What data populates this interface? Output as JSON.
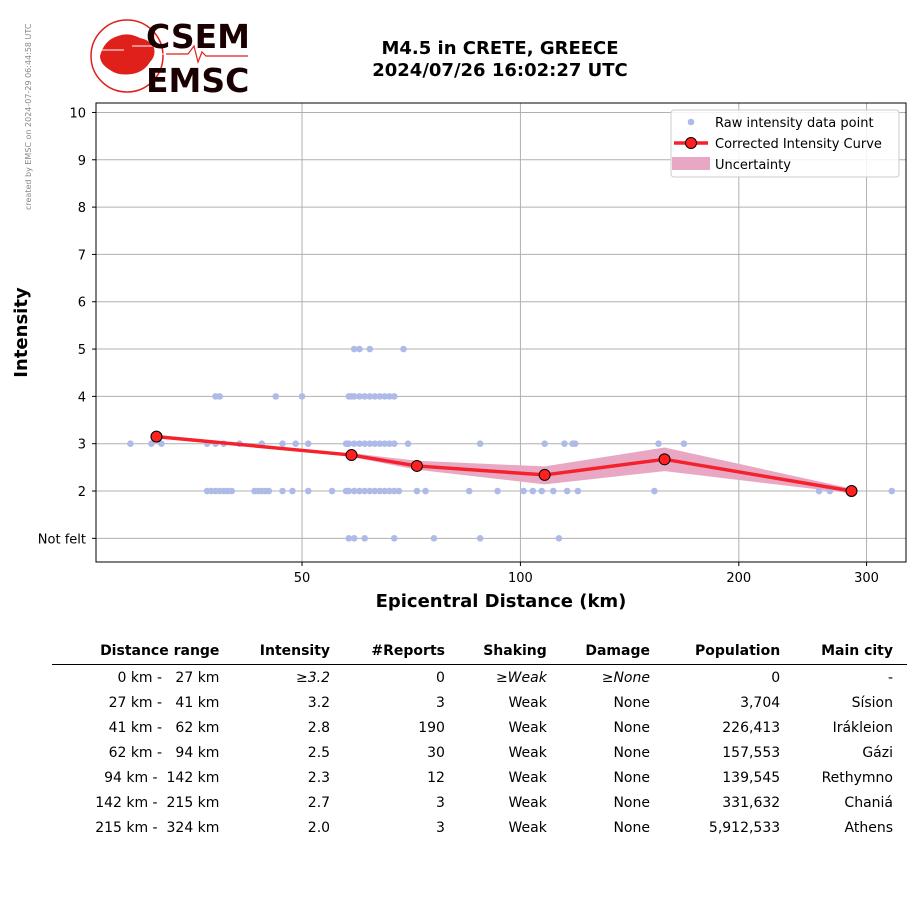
{
  "side_note": "created by EMSC on 2024-07-29 06:44:58 UTC",
  "logo": {
    "line1": "CSEM",
    "line2": "EMSC"
  },
  "title": {
    "line1": "M4.5 in CRETE, GREECE",
    "line2": "2024/07/26 16:02:27 UTC"
  },
  "colors": {
    "raw_points": "#aebbe8",
    "curve": "#f5222d",
    "marker": "#ff2020",
    "uncertainty": "#e8a8c4",
    "grid": "#b0b0b0"
  },
  "chart_data": {
    "type": "scatter",
    "xlabel": "Epicentral Distance (km)",
    "ylabel": "Intensity",
    "x_scale": "log",
    "xlim": [
      26,
      340
    ],
    "ylim": [
      0.5,
      10.2
    ],
    "x_ticks": [
      50,
      100,
      200,
      300
    ],
    "x_tick_labels": [
      "50",
      "100",
      "200",
      "300"
    ],
    "y_ticks": [
      1,
      2,
      3,
      4,
      5,
      6,
      7,
      8,
      9,
      10
    ],
    "y_tick_labels": [
      "Not felt",
      "2",
      "3",
      "4",
      "5",
      "6",
      "7",
      "8",
      "9",
      "10"
    ],
    "grid": true,
    "legend_position": "top-right",
    "legend": [
      "Raw intensity data point",
      "Corrected Intensity Curve",
      "Uncertainty"
    ],
    "series": [
      {
        "name": "Raw intensity data point",
        "points": [
          [
            29,
            3
          ],
          [
            31,
            3
          ],
          [
            32,
            3
          ],
          [
            37,
            3
          ],
          [
            38,
            3
          ],
          [
            39,
            3
          ],
          [
            41,
            3
          ],
          [
            44,
            3
          ],
          [
            47,
            3
          ],
          [
            49,
            3
          ],
          [
            51,
            3
          ],
          [
            57.5,
            3
          ],
          [
            58,
            3
          ],
          [
            59,
            3
          ],
          [
            60,
            3
          ],
          [
            61,
            3
          ],
          [
            62,
            3
          ],
          [
            63,
            3
          ],
          [
            64,
            3
          ],
          [
            65,
            3
          ],
          [
            66,
            3
          ],
          [
            67,
            3
          ],
          [
            70,
            3
          ],
          [
            88,
            3
          ],
          [
            108,
            3
          ],
          [
            115,
            3
          ],
          [
            118,
            3
          ],
          [
            119,
            3
          ],
          [
            155,
            3
          ],
          [
            168,
            3
          ],
          [
            37,
            2
          ],
          [
            37.5,
            2
          ],
          [
            38,
            2
          ],
          [
            38.5,
            2
          ],
          [
            39,
            2
          ],
          [
            39.5,
            2
          ],
          [
            40,
            2
          ],
          [
            43,
            2
          ],
          [
            43.5,
            2
          ],
          [
            44,
            2
          ],
          [
            44.5,
            2
          ],
          [
            45,
            2
          ],
          [
            47,
            2
          ],
          [
            48.5,
            2
          ],
          [
            51,
            2
          ],
          [
            55,
            2
          ],
          [
            57.5,
            2
          ],
          [
            58,
            2
          ],
          [
            59,
            2
          ],
          [
            60,
            2
          ],
          [
            61,
            2
          ],
          [
            62,
            2
          ],
          [
            63,
            2
          ],
          [
            64,
            2
          ],
          [
            65,
            2
          ],
          [
            66,
            2
          ],
          [
            67,
            2
          ],
          [
            68,
            2
          ],
          [
            72,
            2
          ],
          [
            74,
            2
          ],
          [
            85,
            2
          ],
          [
            93,
            2
          ],
          [
            101,
            2
          ],
          [
            104,
            2
          ],
          [
            107,
            2
          ],
          [
            111,
            2
          ],
          [
            116,
            2
          ],
          [
            120,
            2
          ],
          [
            153,
            2
          ],
          [
            258,
            2
          ],
          [
            267,
            2
          ],
          [
            325,
            2
          ],
          [
            38,
            4
          ],
          [
            38.5,
            4
          ],
          [
            46,
            4
          ],
          [
            50,
            4
          ],
          [
            58,
            4
          ],
          [
            58.5,
            4
          ],
          [
            59,
            4
          ],
          [
            60,
            4
          ],
          [
            61,
            4
          ],
          [
            62,
            4
          ],
          [
            63,
            4
          ],
          [
            64,
            4
          ],
          [
            65,
            4
          ],
          [
            66,
            4
          ],
          [
            67,
            4
          ],
          [
            59,
            5
          ],
          [
            60,
            5
          ],
          [
            62,
            5
          ],
          [
            69,
            5
          ],
          [
            58,
            1
          ],
          [
            59,
            1
          ],
          [
            61,
            1
          ],
          [
            67,
            1
          ],
          [
            76,
            1
          ],
          [
            88,
            1
          ],
          [
            113,
            1
          ]
        ]
      },
      {
        "name": "Corrected Intensity Curve",
        "points": [
          [
            31.5,
            3.15
          ],
          [
            58.5,
            2.76
          ],
          [
            72,
            2.53
          ],
          [
            108,
            2.34
          ],
          [
            158,
            2.67
          ],
          [
            286,
            2.0
          ]
        ]
      },
      {
        "name": "Uncertainty",
        "upper": [
          [
            58.5,
            2.8
          ],
          [
            72,
            2.64
          ],
          [
            108,
            2.52
          ],
          [
            158,
            2.92
          ],
          [
            286,
            2.05
          ]
        ],
        "lower": [
          [
            58.5,
            2.72
          ],
          [
            72,
            2.45
          ],
          [
            108,
            2.14
          ],
          [
            158,
            2.42
          ],
          [
            286,
            1.95
          ]
        ]
      }
    ]
  },
  "table": {
    "headers": [
      "Distance range",
      "Intensity",
      "#Reports",
      "Shaking",
      "Damage",
      "Population",
      "Main city"
    ],
    "rows": [
      [
        "0 km -   27 km",
        "≥3.2",
        "0",
        "≥Weak",
        "≥None",
        "0",
        "-"
      ],
      [
        "27 km -   41 km",
        "3.2",
        "3",
        "Weak",
        "None",
        "3,704",
        "Sísion"
      ],
      [
        "41 km -   62 km",
        "2.8",
        "190",
        "Weak",
        "None",
        "226,413",
        "Irákleion"
      ],
      [
        "62 km -   94 km",
        "2.5",
        "30",
        "Weak",
        "None",
        "157,553",
        "Gázi"
      ],
      [
        "94 km -  142 km",
        "2.3",
        "12",
        "Weak",
        "None",
        "139,545",
        "Rethymno"
      ],
      [
        "142 km -  215 km",
        "2.7",
        "3",
        "Weak",
        "None",
        "331,632",
        "Chaniá"
      ],
      [
        "215 km -  324 km",
        "2.0",
        "3",
        "Weak",
        "None",
        "5,912,533",
        "Athens"
      ]
    ]
  }
}
